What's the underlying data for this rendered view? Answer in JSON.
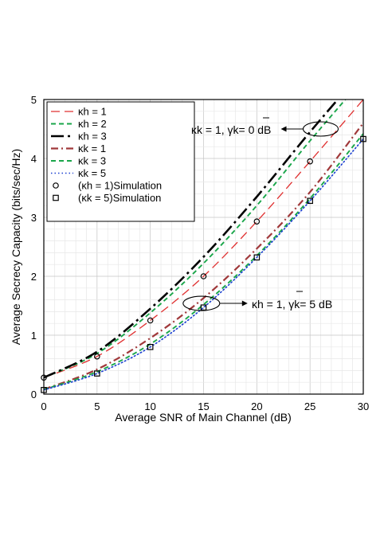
{
  "chart_data": {
    "type": "line",
    "title": "",
    "xlabel": "Average SNR of Main Channel (dB)",
    "ylabel": "Average Secrecy Capacity (bits/sec/Hz)",
    "xlim": [
      0,
      30
    ],
    "ylim": [
      0,
      5
    ],
    "x_ticks": [
      "0",
      "5",
      "10",
      "15",
      "20",
      "25",
      "30"
    ],
    "y_ticks": [
      "0",
      "1",
      "2",
      "3",
      "4",
      "5"
    ],
    "grid": true,
    "legend_position": "top-left",
    "x": [
      0,
      5,
      10,
      15,
      20,
      25,
      30
    ],
    "series": [
      {
        "name": "κh = 1",
        "color": "#e03030",
        "dash": "long-dash",
        "values": [
          0.28,
          0.64,
          1.25,
          2.0,
          2.93,
          3.95,
          5.0
        ]
      },
      {
        "name": "κh = 2",
        "color": "#1aa64a",
        "dash": "dash",
        "values": [
          0.28,
          0.69,
          1.38,
          2.22,
          3.2,
          4.3,
          5.35
        ]
      },
      {
        "name": "κh = 3",
        "color": "#000000",
        "dash": "long-dash-dot",
        "values": [
          0.28,
          0.72,
          1.45,
          2.33,
          3.35,
          4.45,
          5.5
        ]
      },
      {
        "name": "κk = 1",
        "color": "#a0383a",
        "dash": "dash-dot",
        "values": [
          0.08,
          0.42,
          0.95,
          1.63,
          2.47,
          3.43,
          4.6
        ]
      },
      {
        "name": "κk = 3",
        "color": "#1aa64a",
        "dash": "dash",
        "values": [
          0.08,
          0.38,
          0.85,
          1.52,
          2.35,
          3.32,
          4.42
        ]
      },
      {
        "name": "κk = 5",
        "color": "#1a3fd0",
        "dash": "dot",
        "values": [
          0.07,
          0.35,
          0.8,
          1.47,
          2.32,
          3.28,
          4.33
        ]
      }
    ],
    "markers": [
      {
        "name": "(κh = 1)Simulation",
        "symbol": "circle",
        "x": [
          0,
          5,
          10,
          15,
          20,
          25
        ],
        "values": [
          0.28,
          0.64,
          1.25,
          2.0,
          2.93,
          3.95
        ]
      },
      {
        "name": "(κk = 5)Simulation",
        "symbol": "square",
        "x": [
          0,
          5,
          10,
          15,
          20,
          25,
          30
        ],
        "values": [
          0.07,
          0.35,
          0.8,
          1.47,
          2.32,
          3.28,
          4.33
        ]
      }
    ],
    "annotations": [
      {
        "text": "κk = 1,  γk= 0 dB",
        "ellipse_at": {
          "x": 26,
          "y": 4.5
        }
      },
      {
        "text": "κh = 1,  γk= 5 dB",
        "ellipse_at": {
          "x": 14.8,
          "y": 1.54
        }
      }
    ]
  }
}
